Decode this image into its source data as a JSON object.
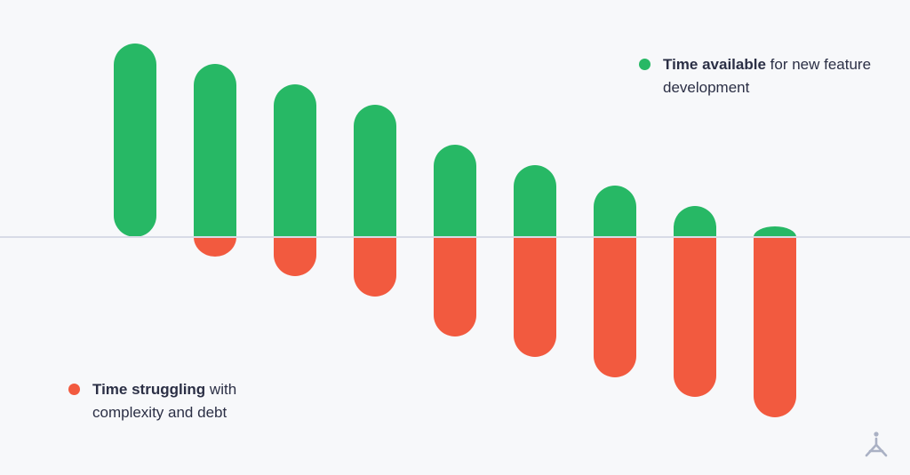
{
  "chart_data": {
    "type": "bar",
    "stacked_diverging": true,
    "categories": [
      "",
      "",
      "",
      "",
      "",
      "",
      "",
      "",
      ""
    ],
    "series": [
      {
        "name": "Time available for new feature development",
        "color": "#27b865",
        "values": [
          218,
          195,
          172,
          149,
          104,
          81,
          58,
          35,
          12
        ]
      },
      {
        "name": "Time struggling with complexity and debt",
        "color": "#f25a3f",
        "values": [
          0,
          22,
          44,
          67,
          112,
          135,
          158,
          180,
          203
        ]
      }
    ],
    "baseline_color": "#d8dbe6",
    "ylim": [
      -215,
      230
    ],
    "grid": false,
    "legend": [
      "top-right",
      "bottom-left"
    ]
  },
  "legend": {
    "available": {
      "bold": "Time available",
      "rest": " for new feature development",
      "color": "#27b865"
    },
    "struggling": {
      "bold": "Time struggling",
      "rest": " with complexity and debt",
      "color": "#f25a3f"
    }
  },
  "logo": {
    "icon": "tripod-logo-icon",
    "color": "#aab1c4"
  }
}
